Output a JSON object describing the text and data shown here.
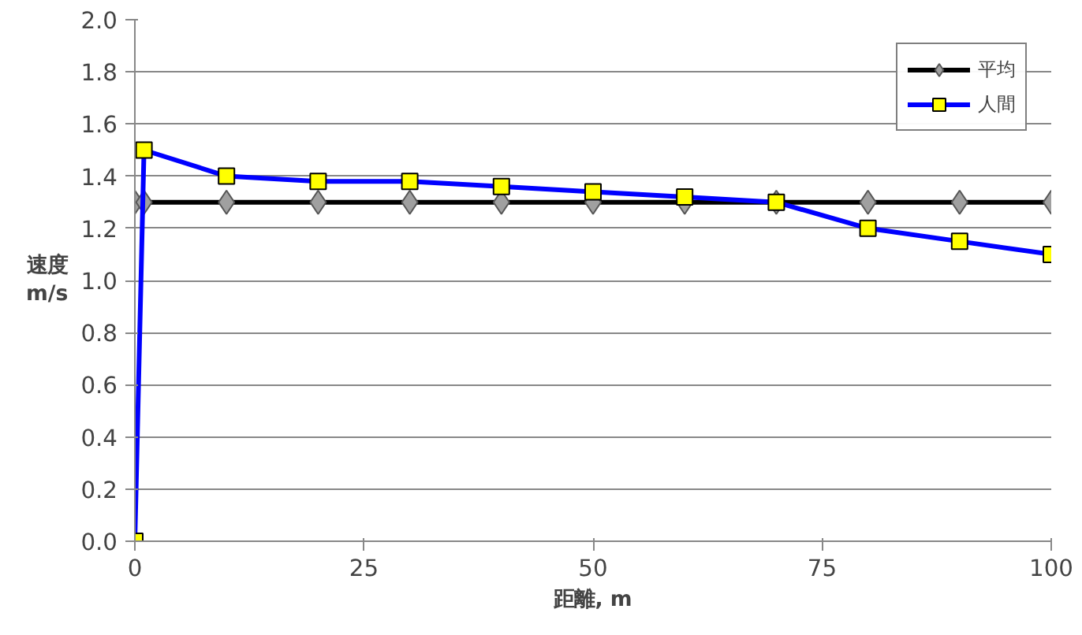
{
  "chart_data": {
    "type": "line",
    "xlabel": "距離, m",
    "ylabel": "速度 m/s",
    "xlim": [
      0,
      100
    ],
    "xticks": [
      0,
      25,
      50,
      75,
      100
    ],
    "ylim": [
      0,
      2
    ],
    "yticks": [
      {
        "value": 0,
        "label": "0.0"
      },
      {
        "value": 0.2,
        "label": "0.2"
      },
      {
        "value": 0.4,
        "label": "0.4"
      },
      {
        "value": 0.6,
        "label": "0.6"
      },
      {
        "value": 0.8,
        "label": "0.8"
      },
      {
        "value": 1.0,
        "label": "1.0"
      },
      {
        "value": 1.2,
        "label": "1.2"
      },
      {
        "value": 1.4,
        "label": "1.4"
      },
      {
        "value": 1.6,
        "label": "1.6"
      },
      {
        "value": 1.8,
        "label": "1.8"
      },
      {
        "value": 2.0,
        "label": "2.0"
      }
    ],
    "grid": "y",
    "legend": "top right",
    "line_style": "solid",
    "x": [
      0,
      1,
      10,
      20,
      30,
      40,
      50,
      60,
      70,
      80,
      90,
      100
    ],
    "series": [
      {
        "name": "平均",
        "color": "#000000",
        "marker": "diamond",
        "values": [
          1.3,
          1.3,
          1.3,
          1.3,
          1.3,
          1.3,
          1.3,
          1.3,
          1.3,
          1.3,
          1.3,
          1.3
        ]
      },
      {
        "name": "人間",
        "color": "#0000ff",
        "marker": "square",
        "values": [
          0,
          1.5,
          1.4,
          1.38,
          1.38,
          1.36,
          1.34,
          1.32,
          1.3,
          1.2,
          1.15,
          1.1
        ]
      }
    ]
  }
}
